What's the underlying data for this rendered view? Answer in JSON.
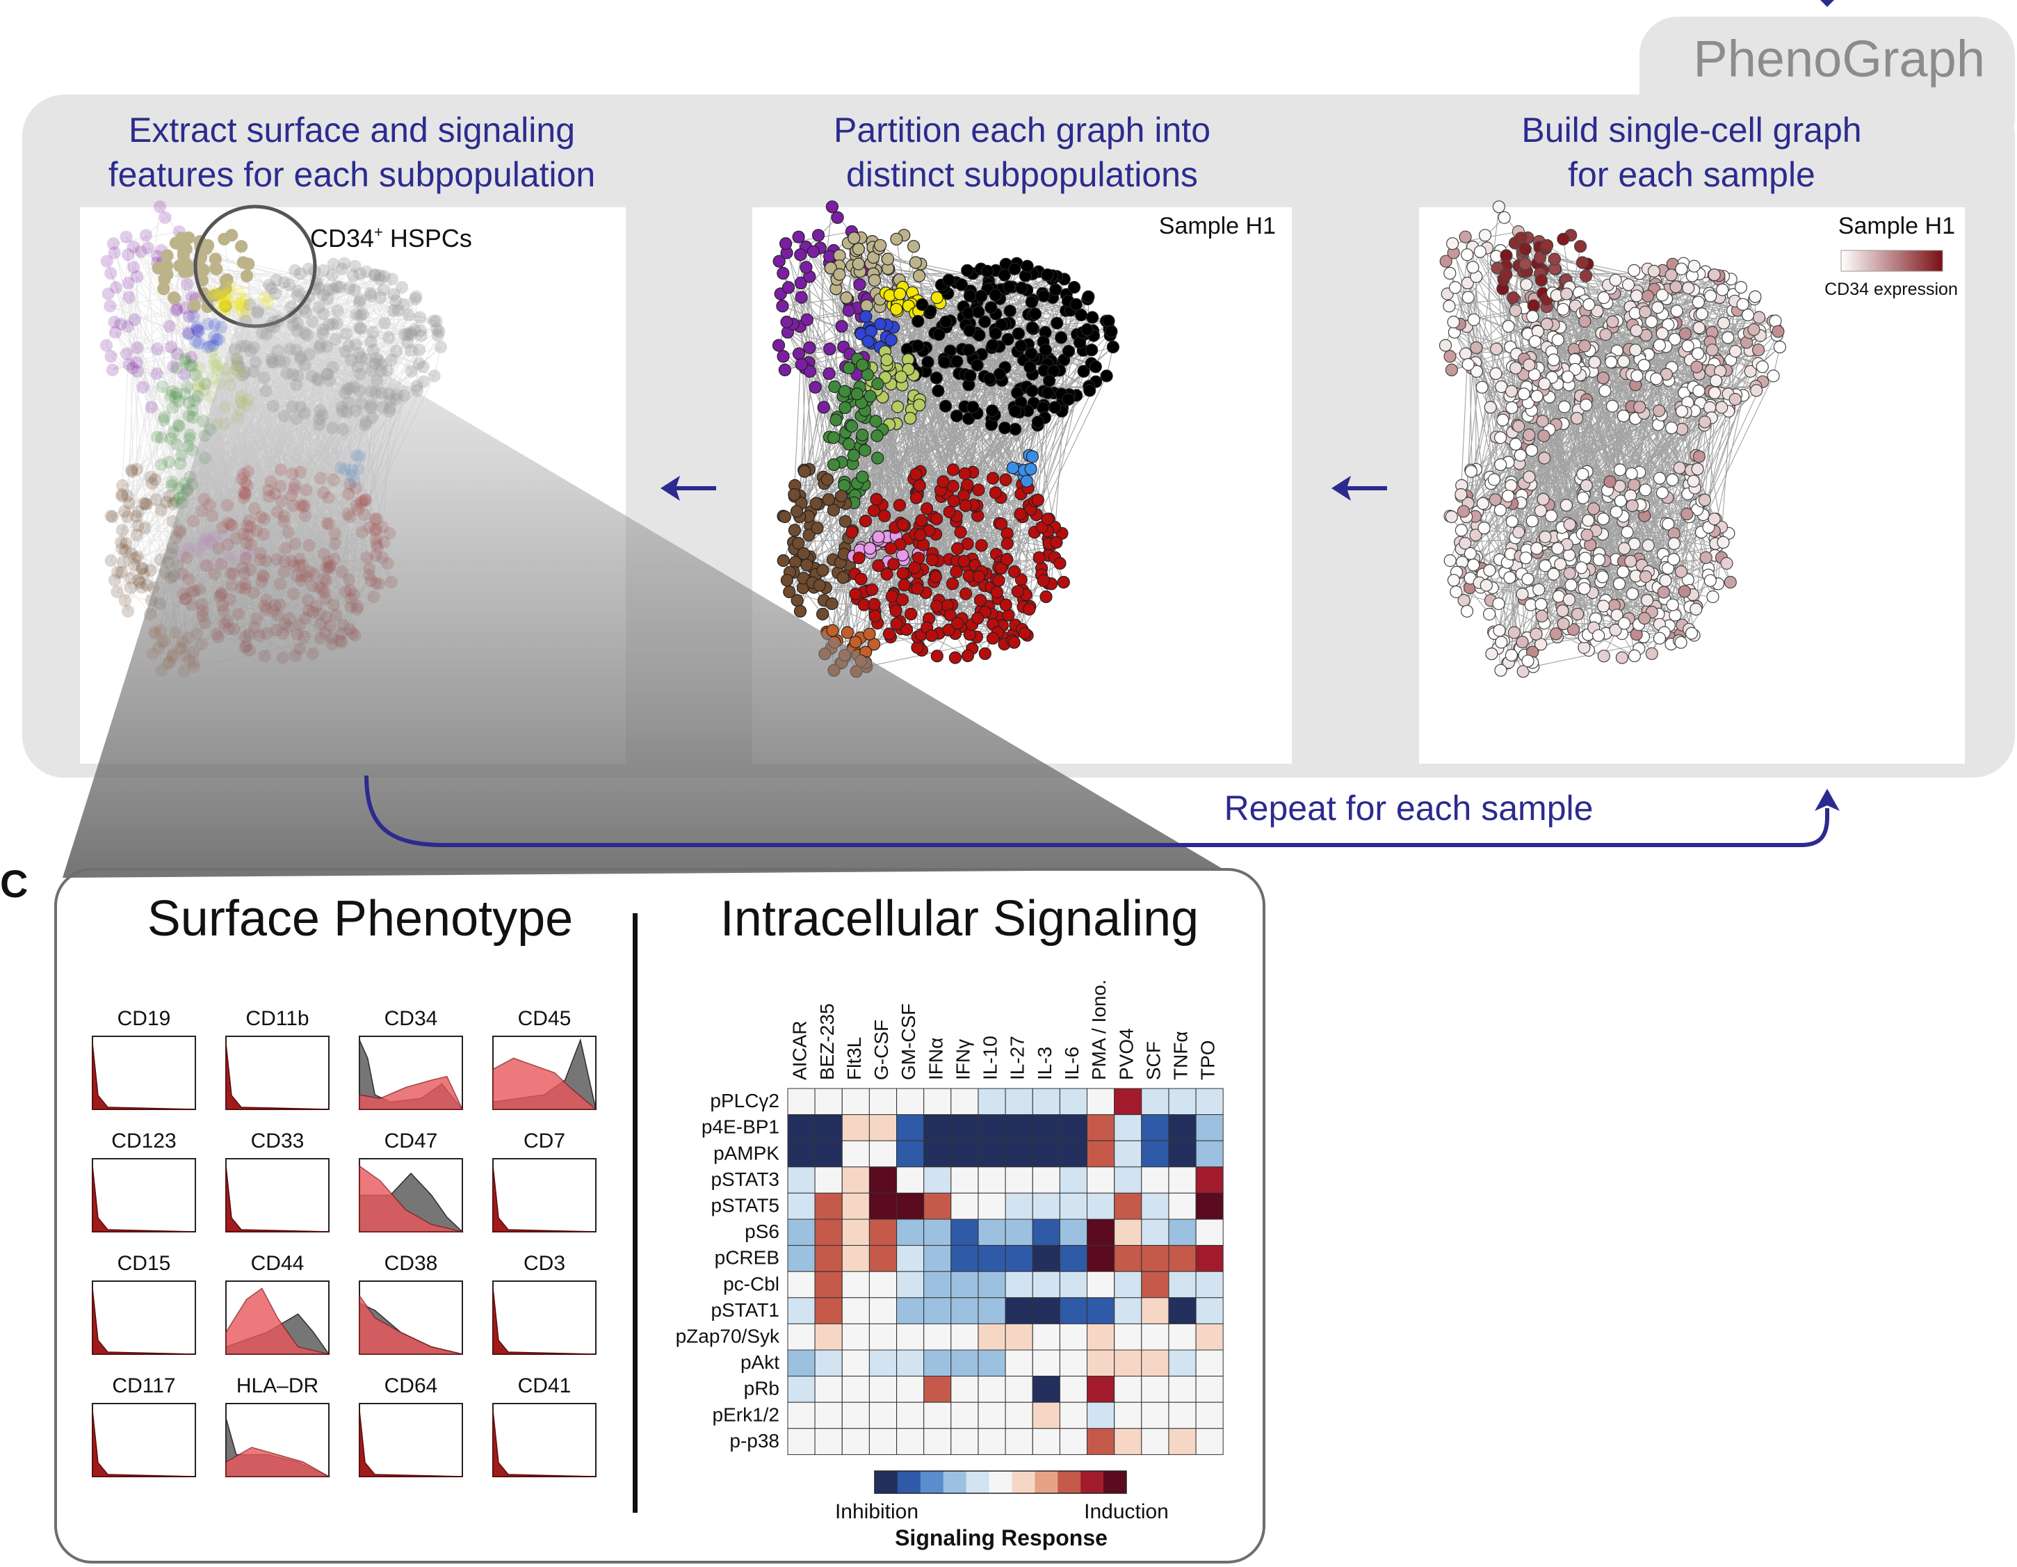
{
  "phenograph": {
    "title": "PhenoGraph",
    "steps": [
      {
        "title_line1": "Extract surface and signaling",
        "title_line2": "features for each subpopulation"
      },
      {
        "title_line1": "Partition each graph into",
        "title_line2": "distinct subpopulations"
      },
      {
        "title_line1": "Build single-cell graph",
        "title_line2": "for each sample"
      }
    ],
    "hspc_label": "CD34",
    "hspc_label_sup": "+",
    "hspc_label_rest": " HSPCs",
    "sample_label": "Sample H1",
    "sample_label_right": "Sample H1",
    "cd34_legend": "CD34 expression",
    "repeat_label": "Repeat for each sample",
    "cluster_colors": [
      "#7b1fa2",
      "#bdb38b",
      "#f2e600",
      "#2f45d6",
      "#000000",
      "#b5cc63",
      "#3f8a3a",
      "#6f4b2f",
      "#e79be9",
      "#b70d0d",
      "#3a8ee6",
      "#c35f2a",
      "#d46a1c"
    ]
  },
  "panel_c": {
    "letter": "C",
    "surface_title": "Surface Phenotype",
    "signaling_title": "Intracellular Signaling",
    "markers": [
      "CD19",
      "CD11b",
      "CD34",
      "CD45",
      "CD123",
      "CD33",
      "CD47",
      "CD7",
      "CD15",
      "CD44",
      "CD38",
      "CD3",
      "CD117",
      "HLA–DR",
      "CD64",
      "CD41"
    ],
    "heatmap": {
      "columns": [
        "AICAR",
        "BEZ-235",
        "Flt3L",
        "G-CSF",
        "GM-CSF",
        "IFNα",
        "IFNγ",
        "IL-10",
        "IL-27",
        "IL-3",
        "IL-6",
        "PMA / Iono.",
        "PVO4",
        "SCF",
        "TNFα",
        "TPO"
      ],
      "rows": [
        "pPLCγ2",
        "p4E-BP1",
        "pAMPK",
        "pSTAT3",
        "pSTAT5",
        "pS6",
        "pCREB",
        "pc-Cbl",
        "pSTAT1",
        "pZap70/Syk",
        "pAkt",
        "pRb",
        "pErk1/2",
        "p-p38"
      ],
      "scale_min": -4,
      "scale_max": 4,
      "values": [
        [
          0,
          0,
          0,
          0,
          0,
          0,
          0,
          -1,
          -1,
          -1,
          -1,
          0,
          3,
          -1,
          -1,
          -1
        ],
        [
          -4,
          -4,
          1,
          1,
          -3,
          -4,
          -4,
          -4,
          -4,
          -4,
          -4,
          2,
          -1,
          -3,
          -4,
          -2
        ],
        [
          -4,
          -4,
          0,
          0,
          -3,
          -4,
          -4,
          -4,
          -4,
          -4,
          -4,
          2,
          -1,
          -3,
          -4,
          -2
        ],
        [
          -1,
          0,
          1,
          4,
          0,
          -1,
          0,
          0,
          0,
          0,
          -1,
          0,
          -1,
          0,
          0,
          3
        ],
        [
          -1,
          2,
          1,
          4,
          4,
          2,
          0,
          0,
          -1,
          -1,
          -1,
          -1,
          2,
          -1,
          0,
          4
        ],
        [
          -2,
          2,
          1,
          2,
          -2,
          -2,
          -3,
          -2,
          -2,
          -3,
          -2,
          4,
          1,
          -1,
          -2,
          0
        ],
        [
          -2,
          2,
          1,
          2,
          -1,
          -2,
          -3,
          -3,
          -3,
          -4,
          -3,
          4,
          2,
          2,
          2,
          3
        ],
        [
          0,
          2,
          0,
          0,
          -1,
          -2,
          -2,
          -2,
          -1,
          -1,
          -1,
          0,
          -1,
          2,
          -1,
          -1
        ],
        [
          -1,
          2,
          0,
          0,
          -2,
          -2,
          -2,
          -2,
          -4,
          -4,
          -3,
          -3,
          -1,
          1,
          -4,
          -1
        ],
        [
          0,
          1,
          0,
          0,
          0,
          0,
          0,
          1,
          1,
          0,
          0,
          1,
          0,
          0,
          0,
          1
        ],
        [
          -2,
          -1,
          0,
          -1,
          -1,
          -2,
          -2,
          -2,
          0,
          0,
          0,
          1,
          1,
          1,
          -1,
          0
        ],
        [
          -1,
          0,
          0,
          0,
          0,
          2,
          0,
          0,
          0,
          -4,
          0,
          3,
          0,
          0,
          0,
          0
        ],
        [
          0,
          0,
          0,
          0,
          0,
          0,
          0,
          0,
          0,
          1,
          0,
          -1,
          0,
          0,
          0,
          0
        ],
        [
          0,
          0,
          0,
          0,
          0,
          0,
          0,
          0,
          0,
          0,
          0,
          2,
          1,
          0,
          1,
          0
        ]
      ],
      "colorbar_colors": [
        "#23305e",
        "#2f5aa8",
        "#5b8ccc",
        "#9cc1e0",
        "#d2e3f1",
        "#f5f5f5",
        "#f6d7c6",
        "#e6a285",
        "#c55a4a",
        "#a11b2c",
        "#5a0b1f"
      ],
      "colorbar_left": "Inhibition",
      "colorbar_right": "Induction",
      "colorbar_title": "Signaling Response"
    }
  }
}
